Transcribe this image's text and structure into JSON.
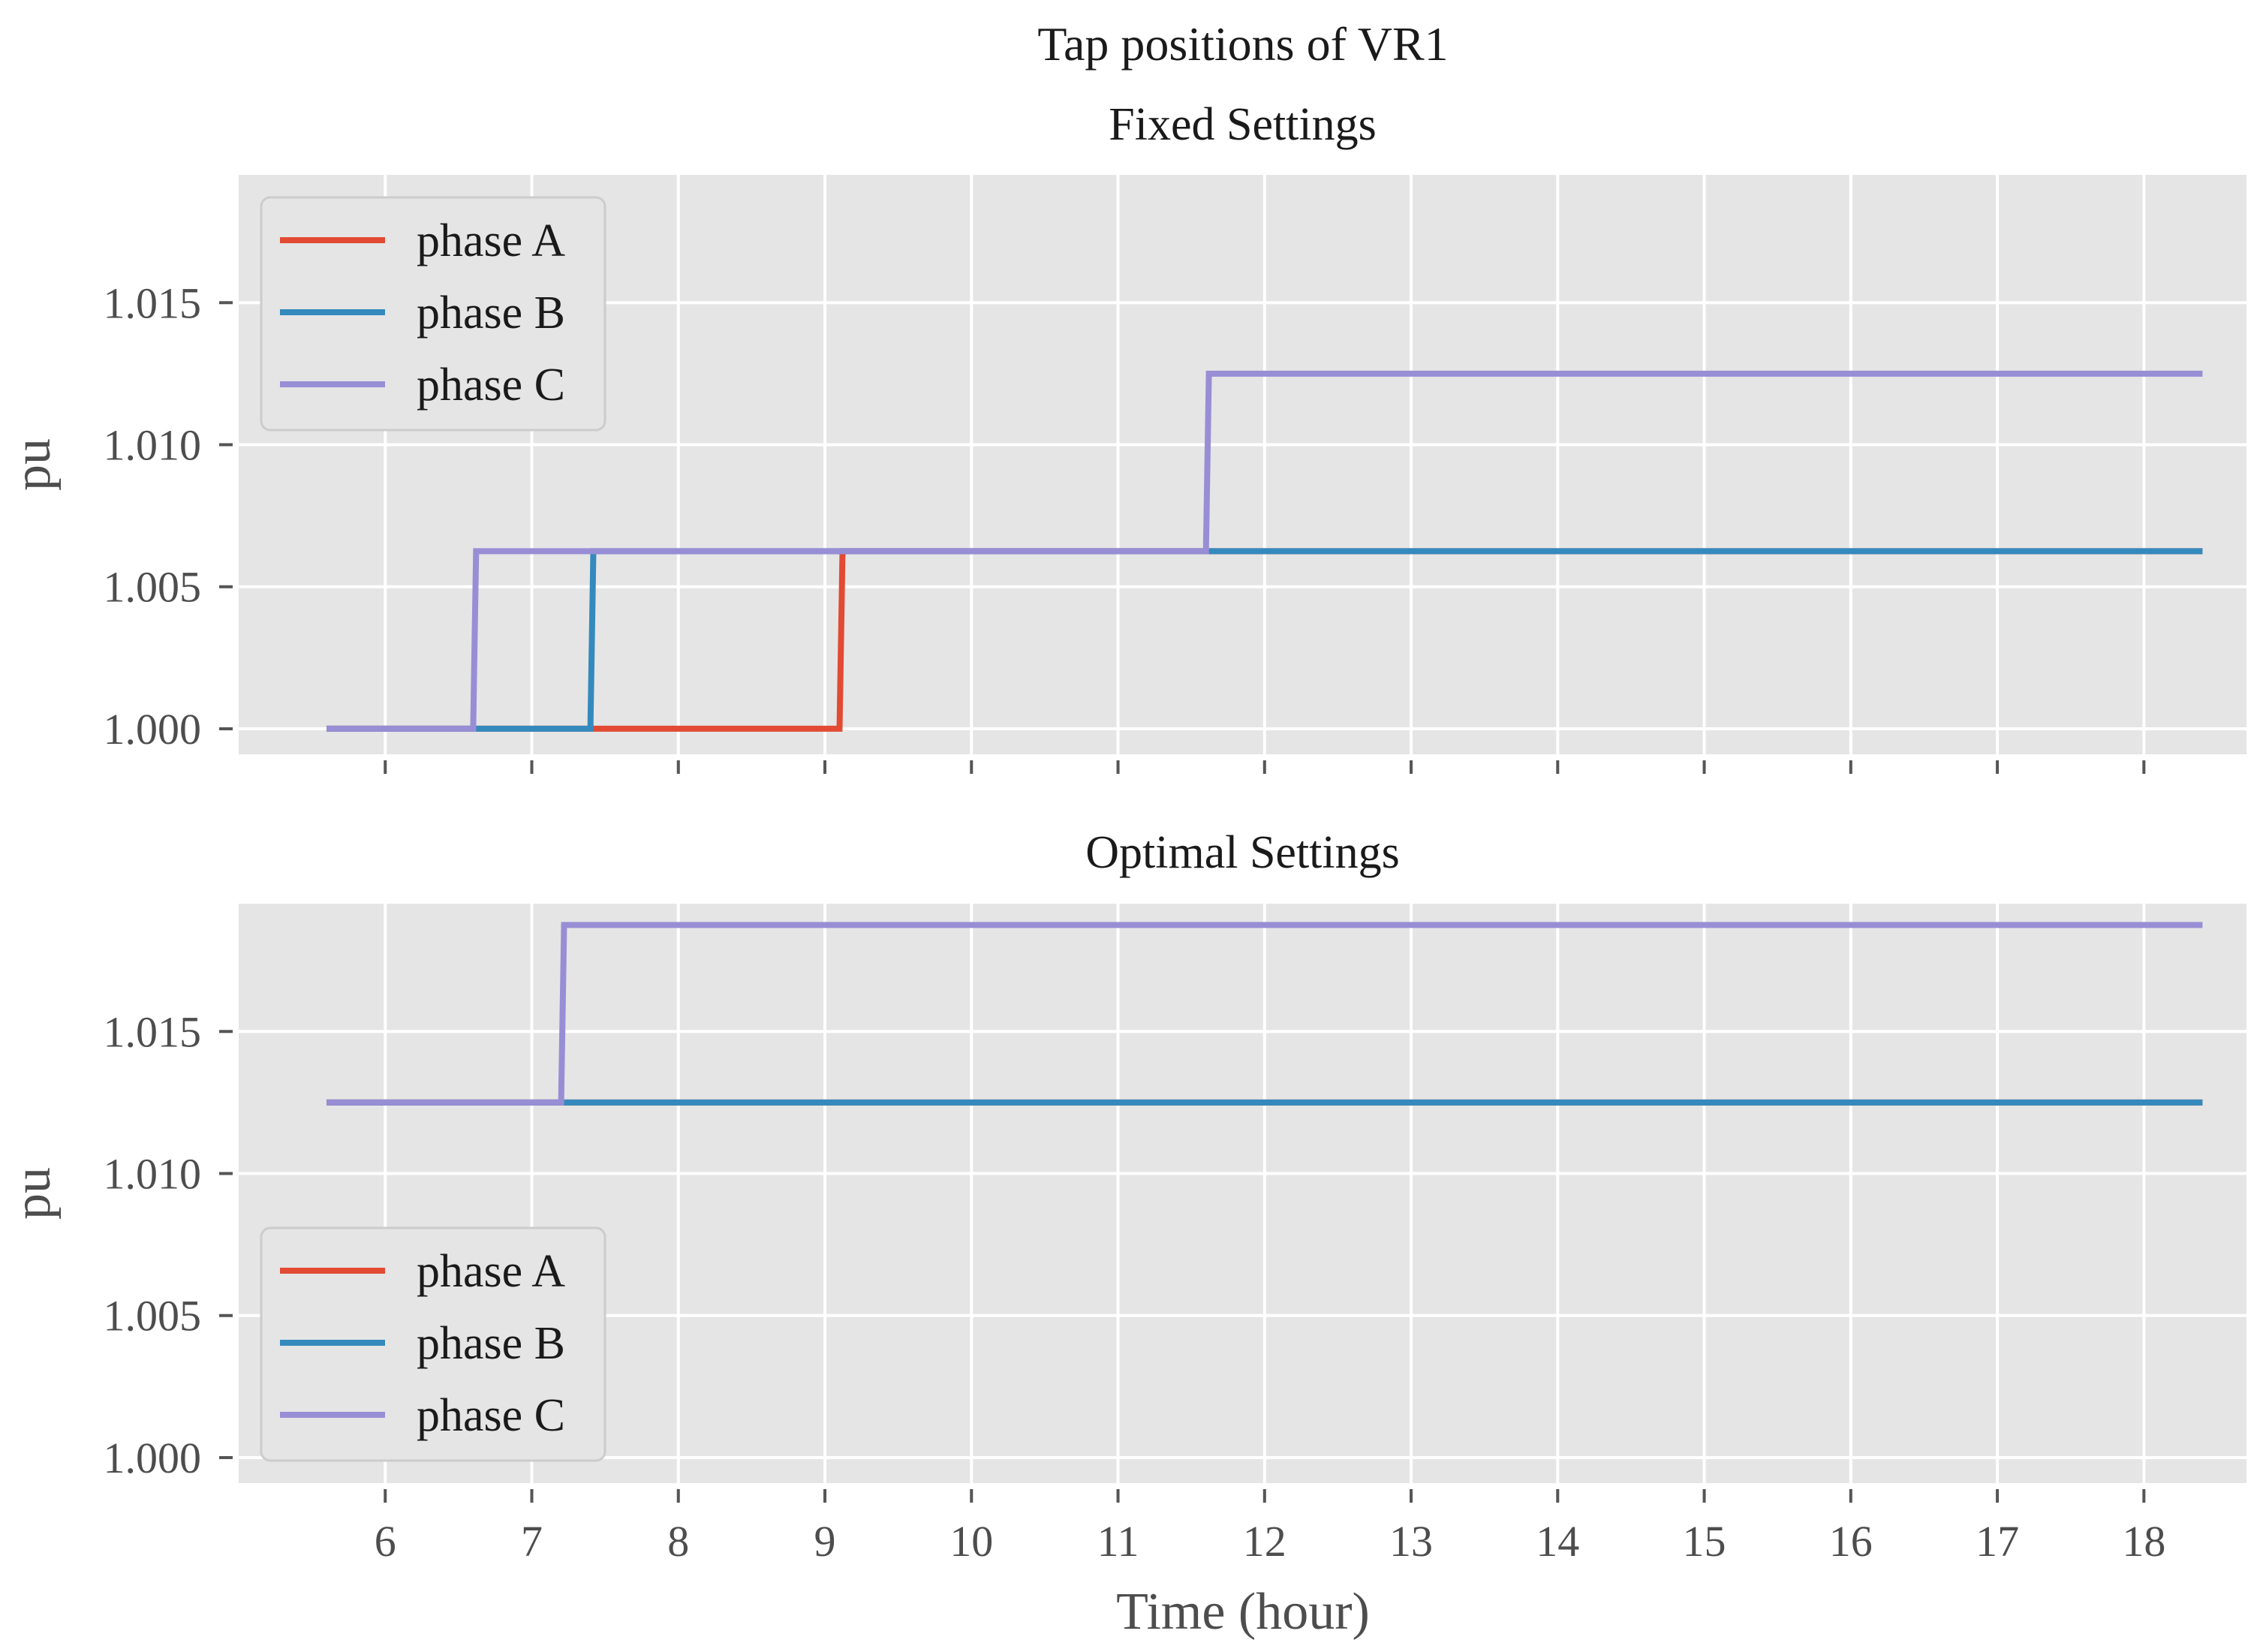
{
  "chart_data": {
    "suptitle": "Tap positions of VR1",
    "xlabel": "Time (hour)",
    "x_ticks": [
      6,
      7,
      8,
      9,
      10,
      11,
      12,
      13,
      14,
      15,
      16,
      17,
      18
    ],
    "xlim": [
      5.0,
      18.7
    ],
    "colors": {
      "phase A": "#E24A33",
      "phase B": "#348ABD",
      "phase C": "#988ED5",
      "axes_bg": "#E5E5E5",
      "grid": "#FFFFFF",
      "tick": "#555555"
    },
    "subplots": [
      {
        "type": "line",
        "title": "Fixed Settings",
        "ylabel": "pu",
        "ylim": [
          0.9991,
          1.0195
        ],
        "y_ticks": [
          "1.000",
          "1.005",
          "1.010",
          "1.015"
        ],
        "show_xticklabels": false,
        "legend": {
          "location": "upper-left",
          "entries": [
            "phase A",
            "phase B",
            "phase C"
          ]
        },
        "series": [
          {
            "name": "phase A",
            "x": [
              5.6,
              9.1,
              9.12,
              18.4
            ],
            "y": [
              1.0,
              1.0,
              1.00625,
              1.00625
            ]
          },
          {
            "name": "phase B",
            "x": [
              5.6,
              7.4,
              7.42,
              18.4
            ],
            "y": [
              1.0,
              1.0,
              1.00625,
              1.00625
            ]
          },
          {
            "name": "phase C",
            "x": [
              5.6,
              6.6,
              6.62,
              11.6,
              11.62,
              18.4
            ],
            "y": [
              1.0,
              1.0,
              1.00625,
              1.00625,
              1.0125,
              1.0125
            ]
          }
        ]
      },
      {
        "type": "line",
        "title": "Optimal Settings",
        "ylabel": "pu",
        "ylim": [
          0.9991,
          1.0195
        ],
        "y_ticks": [
          "1.000",
          "1.005",
          "1.010",
          "1.015"
        ],
        "show_xticklabels": true,
        "legend": {
          "location": "lower-left",
          "entries": [
            "phase A",
            "phase B",
            "phase C"
          ]
        },
        "series": [
          {
            "name": "phase A",
            "x": [
              5.6,
              18.4
            ],
            "y": [
              1.0125,
              1.0125
            ]
          },
          {
            "name": "phase B",
            "x": [
              5.6,
              18.4
            ],
            "y": [
              1.0125,
              1.0125
            ]
          },
          {
            "name": "phase C",
            "x": [
              5.6,
              7.2,
              7.22,
              18.4
            ],
            "y": [
              1.0125,
              1.0125,
              1.01875,
              1.01875
            ]
          }
        ]
      }
    ]
  }
}
